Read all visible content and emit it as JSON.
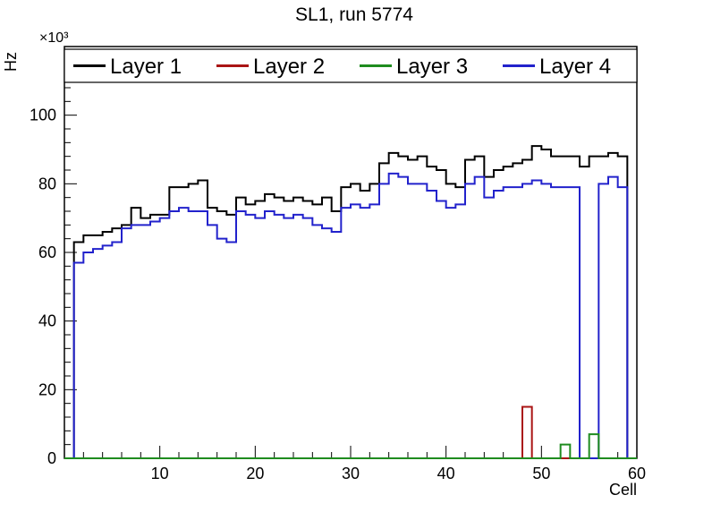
{
  "title": "SL1, run 5774",
  "axes": {
    "x_label": "Cell",
    "y_label": "Hz",
    "y_multiplier": "×10³",
    "xlim": [
      0,
      60
    ],
    "ylim": [
      0,
      120
    ],
    "x_major_ticks": [
      0,
      10,
      20,
      30,
      40,
      50,
      60
    ],
    "x_minor_step": 2,
    "y_major_ticks": [
      0,
      20,
      40,
      60,
      80,
      100
    ],
    "y_minor_step": 4
  },
  "legend": {
    "entries": [
      {
        "label": "Layer 1"
      },
      {
        "label": "Layer 2"
      },
      {
        "label": "Layer 3"
      },
      {
        "label": "Layer 4"
      }
    ]
  },
  "chart_data": {
    "type": "line",
    "style": "step-histogram",
    "title": "SL1, run 5774",
    "xlabel": "Cell",
    "ylabel": "Hz",
    "y_units": "Hz x10^3",
    "xlim": [
      0,
      60
    ],
    "ylim": [
      0,
      120
    ],
    "bin_start": 0,
    "bin_width": 1,
    "n_bins": 60,
    "legend_position": "top-inside-full-width",
    "grid": false,
    "series": [
      {
        "name": "Layer 1",
        "color": "#000000",
        "values": [
          0,
          63,
          65,
          65,
          66,
          67,
          68,
          73,
          70,
          71,
          71,
          79,
          79,
          80,
          81,
          73,
          72,
          71,
          76,
          74,
          75,
          77,
          76,
          75,
          76,
          75,
          74,
          76,
          72,
          79,
          80,
          78,
          80,
          86,
          89,
          88,
          87,
          88,
          85,
          84,
          80,
          79,
          87,
          88,
          82,
          84,
          85,
          86,
          87,
          91,
          90,
          88,
          88,
          88,
          85,
          88,
          88,
          89,
          88,
          0
        ]
      },
      {
        "name": "Layer 2",
        "color": "#aa1414",
        "values": [
          0,
          0,
          0,
          0,
          0,
          0,
          0,
          0,
          0,
          0,
          0,
          0,
          0,
          0,
          0,
          0,
          0,
          0,
          0,
          0,
          0,
          0,
          0,
          0,
          0,
          0,
          0,
          0,
          0,
          0,
          0,
          0,
          0,
          0,
          0,
          0,
          0,
          0,
          0,
          0,
          0,
          0,
          0,
          0,
          0,
          0,
          0,
          0,
          15,
          0,
          0,
          0,
          0,
          0,
          0,
          0,
          0,
          0,
          0,
          0
        ]
      },
      {
        "name": "Layer 3",
        "color": "#1f8c1f",
        "values": [
          0,
          0,
          0,
          0,
          0,
          0,
          0,
          0,
          0,
          0,
          0,
          0,
          0,
          0,
          0,
          0,
          0,
          0,
          0,
          0,
          0,
          0,
          0,
          0,
          0,
          0,
          0,
          0,
          0,
          0,
          0,
          0,
          0,
          0,
          0,
          0,
          0,
          0,
          0,
          0,
          0,
          0,
          0,
          0,
          0,
          0,
          0,
          0,
          0,
          0,
          0,
          0,
          4,
          0,
          0,
          7,
          0,
          0,
          0,
          0
        ]
      },
      {
        "name": "Layer 4",
        "color": "#2222cc",
        "values": [
          0,
          57,
          60,
          61,
          62,
          63,
          67,
          68,
          68,
          69,
          70,
          72,
          73,
          72,
          72,
          68,
          64,
          63,
          72,
          71,
          70,
          72,
          71,
          70,
          71,
          70,
          68,
          67,
          66,
          73,
          74,
          73,
          74,
          80,
          83,
          82,
          80,
          80,
          78,
          75,
          73,
          74,
          80,
          82,
          76,
          78,
          79,
          79,
          80,
          81,
          80,
          79,
          79,
          79,
          0,
          0,
          80,
          82,
          79,
          0
        ]
      }
    ]
  }
}
